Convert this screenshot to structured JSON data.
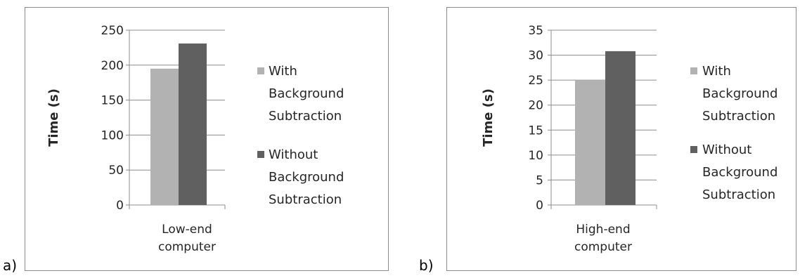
{
  "charts": [
    {
      "panel_label": "a)"
    },
    {
      "panel_label": "b)"
    }
  ],
  "chart_data": [
    {
      "type": "bar",
      "categories": [
        "Low-end computer"
      ],
      "category_lines": [
        "Low-end",
        "computer"
      ],
      "series": [
        {
          "name": "With Background Subtraction",
          "values": [
            195
          ],
          "color": "#b2b2b2"
        },
        {
          "name": "Without Background Subtraction",
          "values": [
            231
          ],
          "color": "#606060"
        }
      ],
      "legend_lines": [
        [
          "With",
          "Background",
          "Subtraction"
        ],
        [
          "Without",
          "Background",
          "Subtraction"
        ]
      ],
      "xlabel": "",
      "ylabel": "Time (s)",
      "ylim": [
        0,
        250
      ],
      "yticks": [
        0,
        50,
        100,
        150,
        200,
        250
      ],
      "grid": true,
      "legend": "right"
    },
    {
      "type": "bar",
      "categories": [
        "High-end computer"
      ],
      "category_lines": [
        "High-end",
        "computer"
      ],
      "series": [
        {
          "name": "With Background Subtraction",
          "values": [
            25
          ],
          "color": "#b2b2b2"
        },
        {
          "name": "Without Background Subtraction",
          "values": [
            30.8
          ],
          "color": "#606060"
        }
      ],
      "legend_lines": [
        [
          "With",
          "Background",
          "Subtraction"
        ],
        [
          "Without",
          "Background",
          "Subtraction"
        ]
      ],
      "xlabel": "",
      "ylabel": "Time (s)",
      "ylim": [
        0,
        35
      ],
      "yticks": [
        0,
        5,
        10,
        15,
        20,
        25,
        30,
        35
      ],
      "grid": true,
      "legend": "right"
    }
  ]
}
